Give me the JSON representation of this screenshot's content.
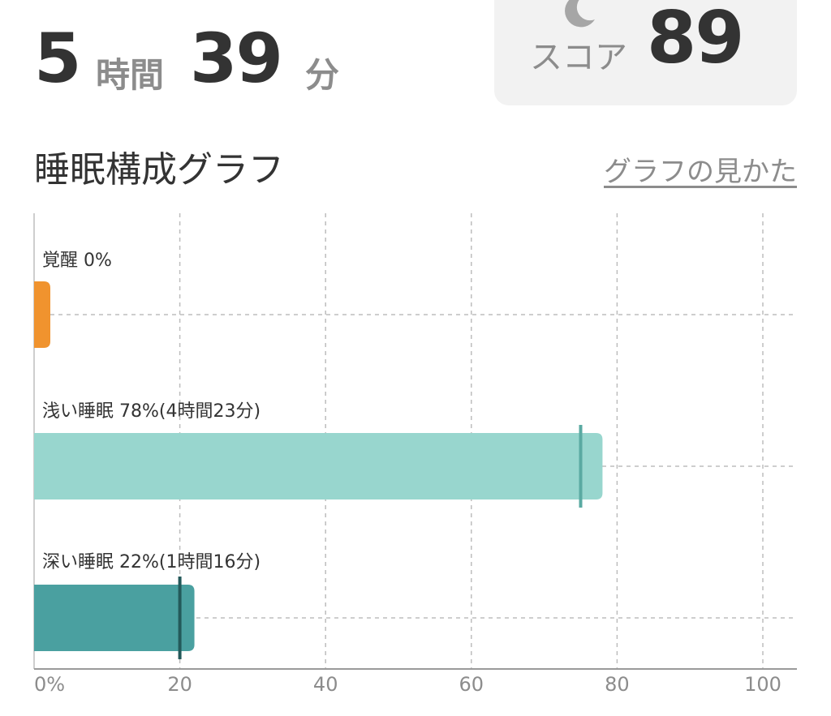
{
  "header": {
    "hours_value": "5",
    "hours_unit": "時間",
    "minutes_value": "39",
    "minutes_unit": "分"
  },
  "score": {
    "icon": "moon-icon",
    "label": "スコア",
    "value": "89"
  },
  "section": {
    "title": "睡眠構成グラフ",
    "help_link": "グラフの見かた"
  },
  "colors": {
    "awake": "#f0932e",
    "light": "#98d6ce",
    "deep": "#4aa0a0",
    "light_marker": "#5aaaa2",
    "deep_marker": "#23595a",
    "grid": "#bdbdbd",
    "axis": "#9a9a9a"
  },
  "chart_data": {
    "type": "bar",
    "orientation": "horizontal",
    "xlim": [
      0,
      100
    ],
    "x_ticks": [
      "0%",
      "20",
      "40",
      "60",
      "80",
      "100"
    ],
    "x_tick_values": [
      0,
      20,
      40,
      60,
      80,
      100
    ],
    "grid": true,
    "series": [
      {
        "key": "awake",
        "label": "覚醒 0%",
        "value": 0,
        "marker": null
      },
      {
        "key": "light",
        "label": "浅い睡眠 78%(4時間23分)",
        "value": 78,
        "marker": 75
      },
      {
        "key": "deep",
        "label": "深い睡眠 22%(1時間16分)",
        "value": 22,
        "marker": 20
      }
    ]
  }
}
